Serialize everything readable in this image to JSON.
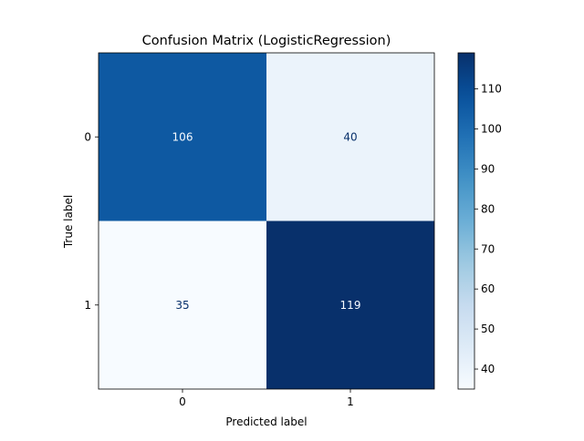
{
  "chart_data": {
    "type": "heatmap",
    "title": "Confusion Matrix (LogisticRegression)",
    "xlabel": "Predicted label",
    "ylabel": "True label",
    "x_categories": [
      "0",
      "1"
    ],
    "y_categories": [
      "0",
      "1"
    ],
    "values": [
      [
        106,
        40
      ],
      [
        35,
        119
      ]
    ],
    "colormap": "Blues",
    "colorbar": {
      "range": [
        35,
        119
      ],
      "ticks": [
        40,
        50,
        60,
        70,
        80,
        90,
        100,
        110
      ]
    },
    "grid": false
  }
}
